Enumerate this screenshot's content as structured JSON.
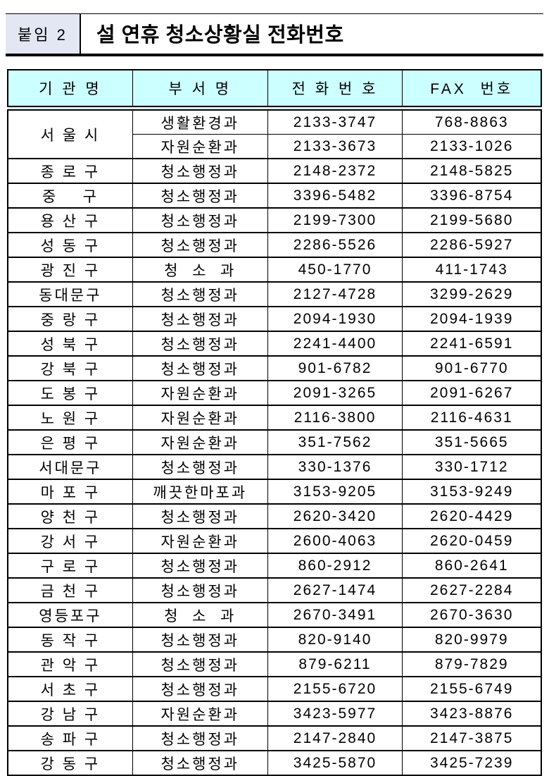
{
  "header": {
    "attachment_label": "붙임 2",
    "title": "설 연휴 청소상황실 전화번호"
  },
  "colors": {
    "table_header_bg": "#ccffff",
    "attachment_box_bg": "#e3e7f4",
    "border": "#000000",
    "page_bg": "#ffffff"
  },
  "table": {
    "headers": [
      "기 관 명",
      "부 서 명",
      "전 화 번 호",
      "FAX  번호"
    ],
    "rows": [
      {
        "org": "서 울 시",
        "rowspan": 2,
        "dept": "생활환경과",
        "phone": "2133-3747",
        "fax": "768-8863"
      },
      {
        "dept": "자원순환과",
        "phone": "2133-3673",
        "fax": "2133-1026"
      },
      {
        "org": "종 로 구",
        "dept": "청소행정과",
        "phone": "2148-2372",
        "fax": "2148-5825"
      },
      {
        "org": "중    구",
        "dept": "청소행정과",
        "phone": "3396-5482",
        "fax": "3396-8754"
      },
      {
        "org": "용 산 구",
        "dept": "청소행정과",
        "phone": "2199-7300",
        "fax": "2199-5680"
      },
      {
        "org": "성 동 구",
        "dept": "청소행정과",
        "phone": "2286-5526",
        "fax": "2286-5927"
      },
      {
        "org": "광 진 구",
        "dept": "청  소  과",
        "phone": "450-1770",
        "fax": "411-1743"
      },
      {
        "org": "동대문구",
        "dept": "청소행정과",
        "phone": "2127-4728",
        "fax": "3299-2629"
      },
      {
        "org": "중 랑 구",
        "dept": "청소행정과",
        "phone": "2094-1930",
        "fax": "2094-1939"
      },
      {
        "org": "성 북 구",
        "dept": "청소행정과",
        "phone": "2241-4400",
        "fax": "2241-6591"
      },
      {
        "org": "강 북 구",
        "dept": "청소행정과",
        "phone": "901-6782",
        "fax": "901-6770"
      },
      {
        "org": "도 봉 구",
        "dept": "자원순환과",
        "phone": "2091-3265",
        "fax": "2091-6267"
      },
      {
        "org": "노 원 구",
        "dept": "자원순환과",
        "phone": "2116-3800",
        "fax": "2116-4631"
      },
      {
        "org": "은 평 구",
        "dept": "자원순환과",
        "phone": "351-7562",
        "fax": "351-5665"
      },
      {
        "org": "서대문구",
        "dept": "청소행정과",
        "phone": "330-1376",
        "fax": "330-1712"
      },
      {
        "org": "마 포 구",
        "dept": "깨끗한마포과",
        "phone": "3153-9205",
        "fax": "3153-9249"
      },
      {
        "org": "양 천 구",
        "dept": "청소행정과",
        "phone": "2620-3420",
        "fax": "2620-4429"
      },
      {
        "org": "강 서 구",
        "dept": "자원순환과",
        "phone": "2600-4063",
        "fax": "2620-0459"
      },
      {
        "org": "구 로 구",
        "dept": "청소행정과",
        "phone": "860-2912",
        "fax": "860-2641"
      },
      {
        "org": "금 천 구",
        "dept": "청소행정과",
        "phone": "2627-1474",
        "fax": "2627-2284"
      },
      {
        "org": "영등포구",
        "dept": "청  소  과",
        "phone": "2670-3491",
        "fax": "2670-3630"
      },
      {
        "org": "동 작 구",
        "dept": "청소행정과",
        "phone": "820-9140",
        "fax": "820-9979"
      },
      {
        "org": "관 악 구",
        "dept": "청소행정과",
        "phone": "879-6211",
        "fax": "879-7829"
      },
      {
        "org": "서 초 구",
        "dept": "청소행정과",
        "phone": "2155-6720",
        "fax": "2155-6749"
      },
      {
        "org": "강 남 구",
        "dept": "자원순환과",
        "phone": "3423-5977",
        "fax": "3423-8876"
      },
      {
        "org": "송 파 구",
        "dept": "청소행정과",
        "phone": "2147-2840",
        "fax": "2147-3875"
      },
      {
        "org": "강 동 구",
        "dept": "청소행정과",
        "phone": "3425-5870",
        "fax": "3425-7239"
      }
    ]
  }
}
